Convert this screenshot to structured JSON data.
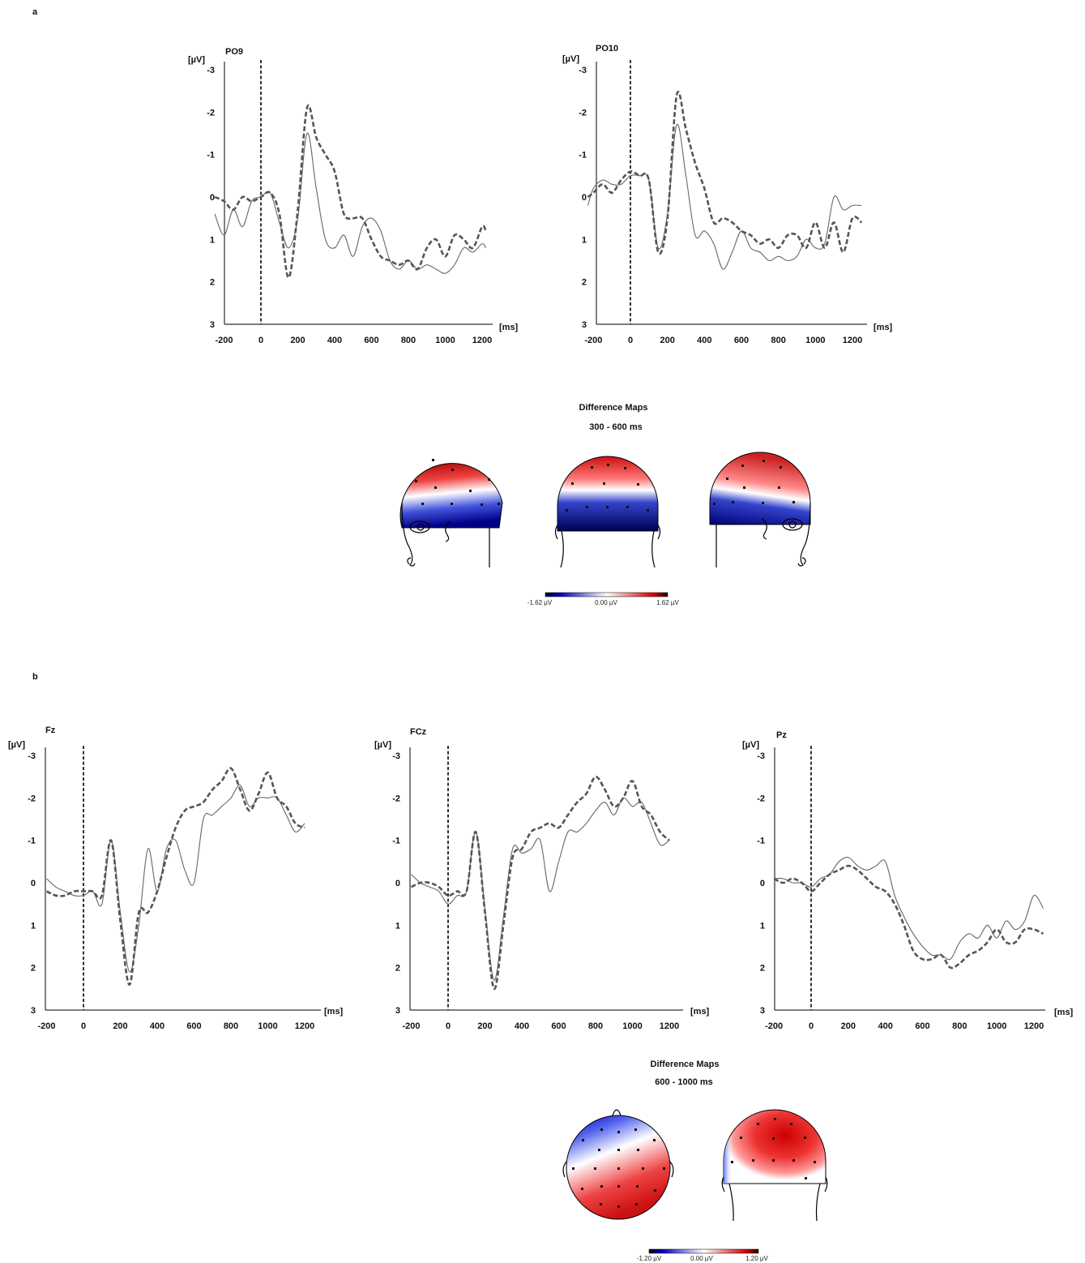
{
  "panels": [
    {
      "label": "a"
    },
    {
      "label": "b"
    }
  ],
  "chart_data": [
    {
      "type": "line",
      "panel": "a",
      "channel": "PO9",
      "ylabel": "[µV]",
      "xlabel": "[ms]",
      "xlim": [
        -250,
        1260
      ],
      "ylim": [
        -3,
        3
      ],
      "y_inverted": true,
      "x_ticks": [
        -200,
        0,
        200,
        400,
        600,
        800,
        1000,
        1200
      ],
      "y_ticks": [
        -3,
        -2,
        -1,
        0,
        1,
        2,
        3
      ],
      "x": [
        -250,
        -200,
        -150,
        -100,
        -50,
        0,
        50,
        100,
        150,
        200,
        250,
        300,
        350,
        400,
        450,
        500,
        550,
        600,
        650,
        700,
        750,
        800,
        850,
        900,
        950,
        1000,
        1050,
        1100,
        1150,
        1200,
        1220
      ],
      "series": [
        {
          "style": "solid",
          "values": [
            0.4,
            0.9,
            0.3,
            0.7,
            0.1,
            0.0,
            -0.1,
            0.6,
            1.2,
            0.5,
            -1.5,
            -0.2,
            1.0,
            1.2,
            0.9,
            1.4,
            0.7,
            0.5,
            0.8,
            1.5,
            1.7,
            1.5,
            1.7,
            1.6,
            1.7,
            1.8,
            1.6,
            1.2,
            1.3,
            1.1,
            1.2
          ]
        },
        {
          "style": "dashed",
          "values": [
            0.0,
            0.1,
            0.3,
            0.0,
            0.1,
            0.0,
            -0.1,
            0.4,
            1.9,
            0.3,
            -2.1,
            -1.4,
            -1.0,
            -0.6,
            0.4,
            0.5,
            0.5,
            1.0,
            1.4,
            1.5,
            1.6,
            1.5,
            1.7,
            1.2,
            1.0,
            1.4,
            0.9,
            1.0,
            1.2,
            0.7,
            0.8
          ]
        }
      ]
    },
    {
      "type": "line",
      "panel": "a",
      "channel": "PO10",
      "ylabel": "[µV]",
      "xlabel": "[ms]",
      "xlim": [
        -230,
        1250
      ],
      "ylim": [
        -3,
        3
      ],
      "y_inverted": true,
      "x_ticks": [
        -200,
        0,
        200,
        400,
        600,
        800,
        1000,
        1200
      ],
      "y_ticks": [
        -3,
        -2,
        -1,
        0,
        1,
        2,
        3
      ],
      "x": [
        -230,
        -200,
        -150,
        -100,
        -50,
        0,
        50,
        100,
        150,
        200,
        250,
        300,
        350,
        400,
        450,
        500,
        550,
        600,
        650,
        700,
        750,
        800,
        850,
        900,
        950,
        1000,
        1050,
        1100,
        1150,
        1200,
        1250
      ],
      "series": [
        {
          "style": "solid",
          "values": [
            0.2,
            -0.2,
            -0.4,
            -0.3,
            -0.3,
            -0.5,
            -0.5,
            -0.4,
            1.2,
            0.4,
            -1.7,
            -0.5,
            0.9,
            0.8,
            1.1,
            1.7,
            1.3,
            0.8,
            1.2,
            1.3,
            1.5,
            1.4,
            1.5,
            1.4,
            1.0,
            1.2,
            1.1,
            0.0,
            0.3,
            0.2,
            0.2
          ]
        },
        {
          "style": "dashed",
          "values": [
            0.0,
            -0.1,
            -0.3,
            -0.1,
            -0.4,
            -0.6,
            -0.5,
            -0.4,
            1.3,
            0.5,
            -2.4,
            -1.6,
            -0.8,
            -0.2,
            0.6,
            0.5,
            0.6,
            0.8,
            0.9,
            1.1,
            1.0,
            1.2,
            0.9,
            0.9,
            1.2,
            0.6,
            1.2,
            0.6,
            1.3,
            0.5,
            0.6
          ]
        }
      ]
    },
    {
      "type": "line",
      "panel": "b",
      "channel": "Fz",
      "ylabel": "[µV]",
      "xlabel": "[ms]",
      "xlim": [
        -200,
        1200
      ],
      "ylim": [
        -3,
        3
      ],
      "y_inverted": true,
      "x_ticks": [
        -200,
        0,
        200,
        400,
        600,
        800,
        1000,
        1200
      ],
      "y_ticks": [
        -3,
        -2,
        -1,
        0,
        1,
        2,
        3
      ],
      "x": [
        -200,
        -150,
        -100,
        -50,
        0,
        50,
        100,
        150,
        200,
        250,
        300,
        350,
        400,
        450,
        500,
        550,
        600,
        650,
        700,
        750,
        800,
        850,
        900,
        950,
        1000,
        1050,
        1100,
        1150,
        1200
      ],
      "series": [
        {
          "style": "solid",
          "values": [
            -0.1,
            0.1,
            0.2,
            0.3,
            0.3,
            0.2,
            0.5,
            -1.0,
            0.7,
            2.1,
            1.0,
            -0.8,
            0.2,
            -0.8,
            -1.0,
            -0.3,
            0.0,
            -1.5,
            -1.6,
            -1.8,
            -2.0,
            -2.3,
            -1.8,
            -2.0,
            -2.0,
            -2.0,
            -1.6,
            -1.2,
            -1.4
          ]
        },
        {
          "style": "dashed",
          "values": [
            0.2,
            0.3,
            0.3,
            0.2,
            0.2,
            0.2,
            0.3,
            -1.0,
            0.9,
            2.4,
            0.7,
            0.7,
            0.2,
            -0.6,
            -1.3,
            -1.7,
            -1.8,
            -1.9,
            -2.2,
            -2.4,
            -2.7,
            -2.2,
            -1.7,
            -2.1,
            -2.6,
            -2.0,
            -1.8,
            -1.4,
            -1.3
          ]
        }
      ]
    },
    {
      "type": "line",
      "panel": "b",
      "channel": "FCz",
      "ylabel": "[µV]",
      "xlabel": "[ms]",
      "xlim": [
        -200,
        1200
      ],
      "ylim": [
        -3,
        3
      ],
      "y_inverted": true,
      "x_ticks": [
        -200,
        0,
        200,
        400,
        600,
        800,
        1000,
        1200
      ],
      "y_ticks": [
        -3,
        -2,
        -1,
        0,
        1,
        2,
        3
      ],
      "x": [
        -200,
        -150,
        -100,
        -50,
        0,
        50,
        100,
        150,
        200,
        250,
        300,
        350,
        400,
        450,
        500,
        550,
        600,
        650,
        700,
        750,
        800,
        850,
        900,
        950,
        1000,
        1050,
        1100,
        1150,
        1200
      ],
      "series": [
        {
          "style": "solid",
          "values": [
            -0.2,
            0.0,
            0.1,
            0.2,
            0.5,
            0.3,
            0.2,
            -1.2,
            0.6,
            2.3,
            0.8,
            -0.8,
            -0.7,
            -0.8,
            -1.0,
            0.2,
            -0.5,
            -1.2,
            -1.2,
            -1.4,
            -1.7,
            -1.9,
            -1.6,
            -2.0,
            -1.8,
            -1.9,
            -1.4,
            -0.9,
            -1.0
          ]
        },
        {
          "style": "dashed",
          "values": [
            0.1,
            0.0,
            0.0,
            0.1,
            0.3,
            0.2,
            0.2,
            -1.2,
            0.7,
            2.5,
            1.0,
            -0.6,
            -0.8,
            -1.2,
            -1.3,
            -1.4,
            -1.3,
            -1.6,
            -1.9,
            -2.1,
            -2.5,
            -2.2,
            -1.8,
            -2.0,
            -2.4,
            -1.8,
            -1.6,
            -1.2,
            -1.0
          ]
        }
      ]
    },
    {
      "type": "line",
      "panel": "b",
      "channel": "Pz",
      "ylabel": "[µV]",
      "xlabel": "[ms]",
      "xlim": [
        -200,
        1200
      ],
      "ylim": [
        -3,
        3
      ],
      "y_inverted": true,
      "x_ticks": [
        -200,
        0,
        200,
        400,
        600,
        800,
        1000,
        1200
      ],
      "y_ticks": [
        -3,
        -2,
        -1,
        0,
        1,
        2,
        3
      ],
      "x": [
        -200,
        -150,
        -100,
        -50,
        0,
        50,
        100,
        150,
        200,
        250,
        300,
        350,
        400,
        450,
        500,
        550,
        600,
        650,
        700,
        750,
        800,
        850,
        900,
        950,
        1000,
        1050,
        1100,
        1150,
        1200,
        1250
      ],
      "series": [
        {
          "style": "solid",
          "values": [
            -0.1,
            -0.1,
            0.0,
            0.0,
            0.1,
            -0.1,
            -0.2,
            -0.5,
            -0.6,
            -0.4,
            -0.3,
            -0.4,
            -0.5,
            0.3,
            0.8,
            1.2,
            1.5,
            1.7,
            1.7,
            1.8,
            1.4,
            1.2,
            1.3,
            1.0,
            1.3,
            0.9,
            1.1,
            0.9,
            0.3,
            0.6
          ]
        },
        {
          "style": "dashed",
          "values": [
            -0.1,
            0.0,
            -0.1,
            0.0,
            0.2,
            0.0,
            -0.2,
            -0.3,
            -0.4,
            -0.3,
            -0.1,
            0.1,
            0.2,
            0.5,
            1.0,
            1.6,
            1.8,
            1.8,
            1.7,
            2.0,
            1.9,
            1.7,
            1.6,
            1.4,
            1.1,
            1.4,
            1.4,
            1.1,
            1.1,
            1.2
          ]
        }
      ]
    },
    {
      "type": "heatmap",
      "panel": "a",
      "title": "Difference Maps",
      "subtitle": "300 - 600 ms",
      "views": [
        "left",
        "back",
        "right"
      ],
      "colorbar": {
        "min_label": "-1.62 µV",
        "mid_label": "0.00 µV",
        "max_label": "1.62 µV",
        "min": -1.62,
        "max": 1.62
      },
      "colors": {
        "negative": "#0000cc",
        "zero": "#ffffff",
        "positive": "#dd0000"
      }
    },
    {
      "type": "heatmap",
      "panel": "b",
      "title": "Difference Maps",
      "subtitle": "600  - 1000 ms",
      "views": [
        "top",
        "back"
      ],
      "colorbar": {
        "min_label": "-1.20 µV",
        "mid_label": "0.00 µV",
        "max_label": "1.20 µV",
        "min": -1.2,
        "max": 1.2
      },
      "colors": {
        "negative": "#0000cc",
        "zero": "#ffffff",
        "positive": "#dd0000"
      }
    }
  ]
}
